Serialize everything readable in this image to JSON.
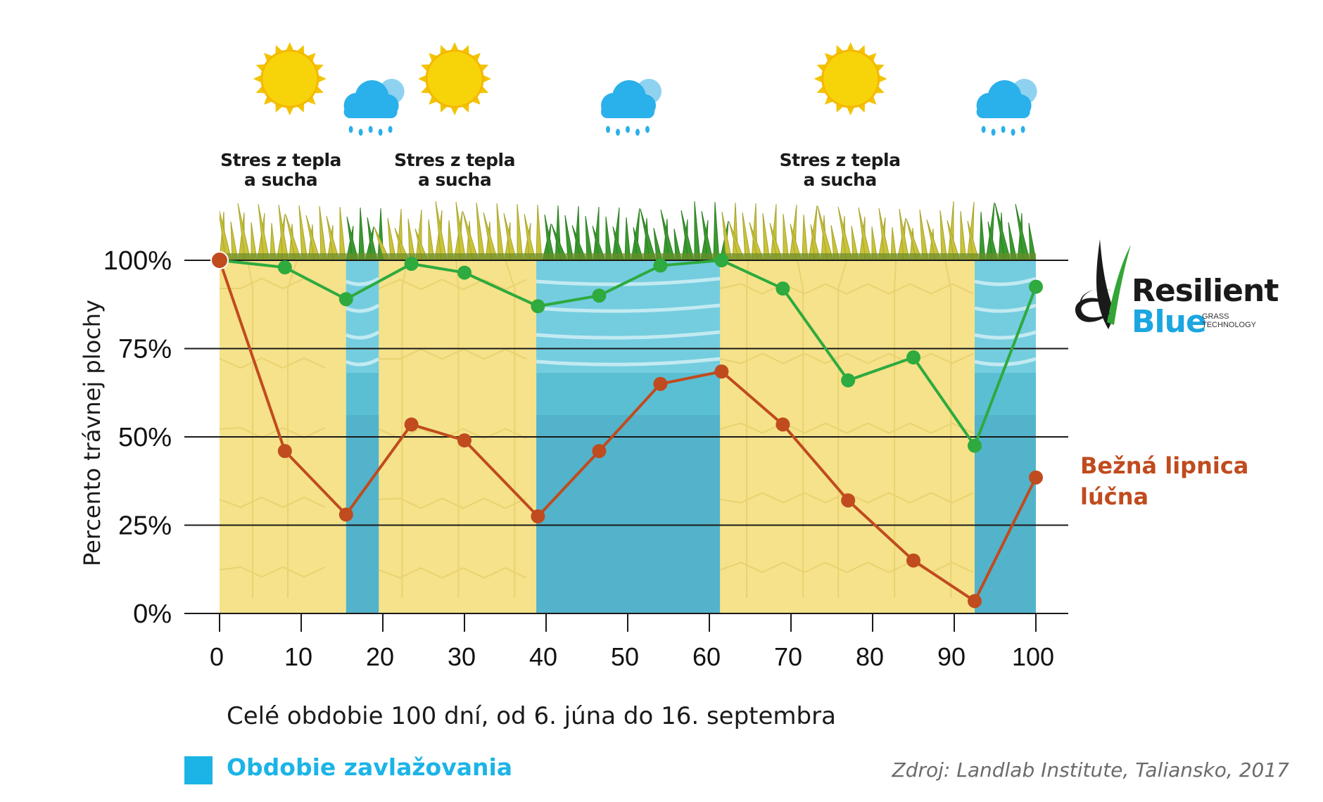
{
  "chart_data": {
    "type": "line",
    "x": [
      0,
      8,
      15.5,
      23.5,
      30,
      39,
      46.5,
      54,
      61.5,
      69,
      77,
      85,
      92.5,
      100
    ],
    "series": [
      {
        "name": "Resilient Blue",
        "color": "#2eaa3e",
        "values": [
          100,
          98,
          89,
          99,
          96.5,
          87,
          90,
          98.5,
          100,
          92,
          66,
          72.5,
          47.5,
          92.5
        ]
      },
      {
        "name": "Bežná lipnica lúčna",
        "color": "#c04b1e",
        "values": [
          100,
          46,
          28,
          53.5,
          49,
          27.5,
          46,
          65,
          68.5,
          53.5,
          32,
          15,
          3.5,
          38.5
        ]
      }
    ],
    "xlim": [
      0,
      100
    ],
    "ylim": [
      0,
      100
    ],
    "xticks": [
      0,
      10,
      20,
      30,
      40,
      50,
      60,
      70,
      80,
      90,
      100
    ],
    "yticks": [
      0,
      25,
      50,
      75,
      100
    ],
    "ytick_labels": [
      "0%",
      "25%",
      "50%",
      "75%",
      "100%"
    ],
    "xlabel": "Celé obdobie 100 dní, od 6. júna do 16. septembra",
    "ylabel": "Percento trávnej plochy",
    "irrigation_periods": [
      [
        15.5,
        19.5
      ],
      [
        38.8,
        61.3
      ],
      [
        92.5,
        100
      ]
    ],
    "drought_periods": [
      [
        0,
        15.5
      ],
      [
        19.5,
        38.8
      ],
      [
        61.3,
        92.5
      ]
    ],
    "stress_annotations": [
      {
        "x": 7.5,
        "line1": "Stres z tepla",
        "line2": "a sucha"
      },
      {
        "x": 28.8,
        "line1": "Stres z tepla",
        "line2": "a sucha"
      },
      {
        "x": 76,
        "line1": "Stres z tepla",
        "line2": "a sucha"
      }
    ],
    "weather_icons": [
      {
        "type": "sun-icon",
        "x": 8.6
      },
      {
        "type": "rain-cloud-icon",
        "x": 18.5
      },
      {
        "type": "sun-icon",
        "x": 28.8
      },
      {
        "type": "rain-cloud-icon",
        "x": 50
      },
      {
        "type": "sun-icon",
        "x": 77.3
      },
      {
        "type": "rain-cloud-icon",
        "x": 96
      }
    ],
    "grid": true,
    "legend_position": "bottom-left"
  },
  "legend": {
    "irrigation_label": "Obdobie zavlažovania",
    "irrigation_color": "#1cb4e6"
  },
  "series_labels": {
    "regular_line1": "Bežná lipnica",
    "regular_line2": "lúčna",
    "regular_color": "#c04b1e"
  },
  "logo": {
    "word1": "Resilient",
    "word2": "Blue",
    "word2_color": "#1ba6e0",
    "sub1": "GRASS",
    "sub2": "TECHNOLOGY"
  },
  "source": "Zdroj: Landlab Institute, Taliansko, 2017",
  "colors": {
    "drought": "#f5e28a",
    "irrigation": "#5bbfd3",
    "grass_green": "#3a9a2e",
    "grass_dry": "#c9c33a",
    "sun": "#f7d40a",
    "cloud": "#2ab0ea"
  }
}
